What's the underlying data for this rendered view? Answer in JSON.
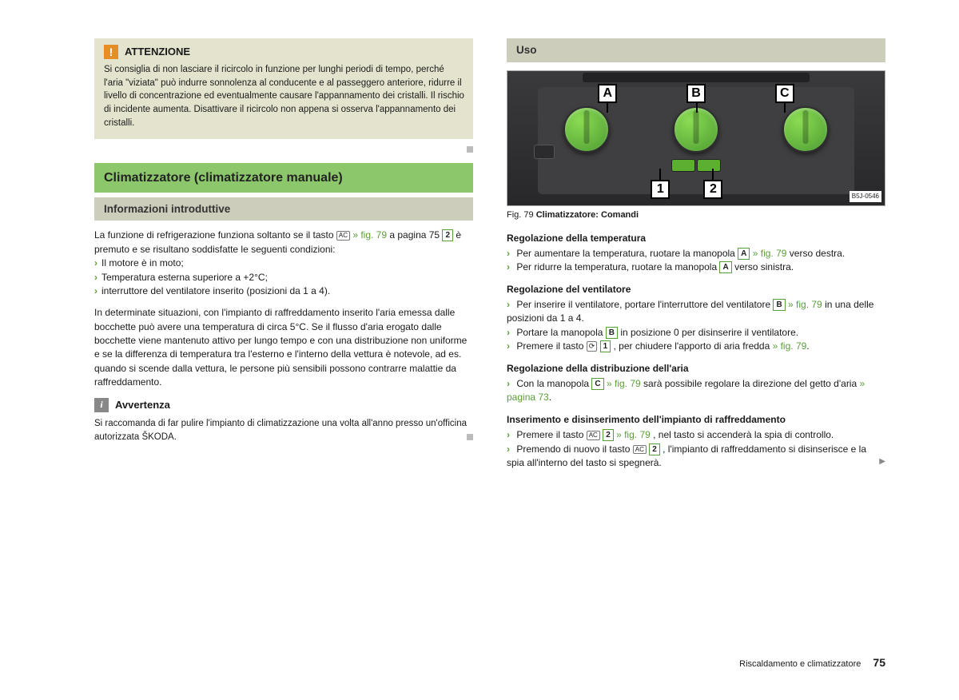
{
  "left": {
    "warning": {
      "title": "ATTENZIONE",
      "body": "Si consiglia di non lasciare il ricircolo in funzione per lunghi periodi di tempo, perché l'aria \"viziata\" può indurre sonnolenza al conducente e al passeggero anteriore, ridurre il livello di concentrazione ed eventualmente causare l'appannamento dei cristalli. Il rischio di incidente aumenta. Disattivare il ricircolo non appena si osserva l'appannamento dei cristalli."
    },
    "section_title": "Climatizzatore (climatizzatore manuale)",
    "sub_title": "Informazioni introduttive",
    "intro_a": "La funzione di refrigerazione funziona soltanto se il tasto ",
    "intro_b": " a pagina 75 ",
    "intro_c": "è premuto e se risultano soddisfatte le seguenti condizioni:",
    "ref79": "» fig. 79",
    "bullets": [
      "Il motore è in moto;",
      "Temperatura esterna superiore a +2°C;",
      "interruttore del ventilatore inserito (posizioni da 1 a 4)."
    ],
    "para2": "In determinate situazioni, con l'impianto di raffreddamento inserito l'aria emessa dalle bocchette può avere una temperatura di circa 5°C. Se il flusso d'aria erogato dalle bocchette viene mantenuto attivo per lungo tempo e con una distribuzione non uniforme e se la differenza di temperatura tra l'esterno e l'interno della vettura è notevole, ad es. quando si scende dalla vettura, le persone più sensibili possono contrarre malattie da raffreddamento.",
    "note": {
      "title": "Avvertenza",
      "body": "Si raccomanda di far pulire l'impianto di climatizzazione una volta all'anno presso un'officina autorizzata ŠKODA."
    }
  },
  "right": {
    "uso": "Uso",
    "fig_caption_label": "Fig. 79",
    "fig_caption": "Climatizzatore: Comandi",
    "fig_code": "B5J-0546",
    "temp_head": "Regolazione della temperatura",
    "temp_b1a": "Per aumentare la temperatura, ruotare la manopola ",
    "temp_b1b": " verso destra.",
    "temp_b2a": "Per ridurre la temperatura, ruotare la manopola ",
    "temp_b2b": " verso sinistra.",
    "vent_head": "Regolazione del ventilatore",
    "vent_b1a": "Per inserire il ventilatore, portare l'interruttore del ventilatore ",
    "vent_b1b": "in una delle posizioni da 1 a 4.",
    "vent_b2a": "Portare la manopola ",
    "vent_b2b": " in posizione 0 per disinserire il ventilatore.",
    "vent_b3a": "Premere il tasto ",
    "vent_b3b": " , per chiudere l'apporto di aria fredda ",
    "air_head": "Regolazione della distribuzione dell'aria",
    "air_b1a": "Con la manopola ",
    "air_b1b": "sarà possibile regolare la direzione del getto d'aria",
    "air_ref": "» pagina 73",
    "cool_head": "Inserimento e disinserimento dell'impianto di raffreddamento",
    "cool_b1a": "Premere il tasto ",
    "cool_b1b": ", nel tasto si accenderà la spia di controllo.",
    "cool_b2a": "Premendo di nuovo il tasto ",
    "cool_b2b": ", l'impianto di raffreddamento si disinserisce e la spia all'interno del tasto si spegnerà.",
    "labels": {
      "A": "A",
      "B": "B",
      "C": "C",
      "n1": "1",
      "n2": "2",
      "ac": "AC",
      "circ": "⟳"
    }
  },
  "footer": {
    "section": "Riscaldamento e climatizzatore",
    "page": "75"
  }
}
